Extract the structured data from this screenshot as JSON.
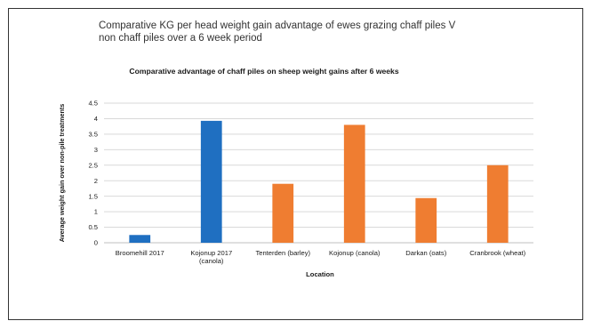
{
  "slide": {
    "title_line1": "Comparative KG per head weight gain advantage of ewes grazing  chaff piles V",
    "title_line2": "non chaff  piles over a 6 week period"
  },
  "chart_data": {
    "type": "bar",
    "title": "Comparative advantage of chaff piles on sheep weight gains after 6 weeks",
    "xlabel": "Location",
    "ylabel": "Average weight gain over non-pile treatments",
    "categories": [
      [
        "Broomehill 2017"
      ],
      [
        "Kojonup 2017",
        "(canola)"
      ],
      [
        "Tenterden (barley)"
      ],
      [
        "Kojonup (canola)"
      ],
      [
        "Darkan (oats)"
      ],
      [
        "Cranbrook (wheat)"
      ]
    ],
    "values": [
      0.25,
      3.93,
      1.9,
      3.8,
      1.44,
      2.5
    ],
    "colors": [
      "#1f6fc1",
      "#1f6fc1",
      "#ef7d31",
      "#ef7d31",
      "#ef7d31",
      "#ef7d31"
    ],
    "ylim": [
      0,
      4.5
    ],
    "yticks": [
      "0",
      "0.5",
      "1",
      "1.5",
      "2",
      "2.5",
      "3",
      "3.5",
      "4",
      "4.5"
    ],
    "grid": true,
    "legend": "none"
  }
}
